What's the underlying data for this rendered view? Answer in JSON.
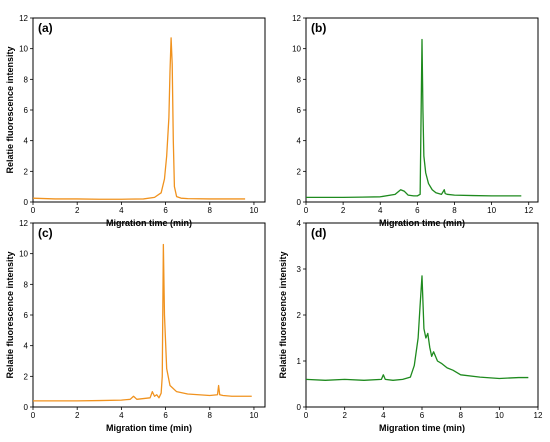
{
  "chart_data": [
    {
      "type": "line",
      "panel_label": "(a)",
      "xlabel": "Migration time (min)",
      "ylabel": "Relatie fluorescence intensity",
      "xlim": [
        0,
        10.5
      ],
      "ylim": [
        0,
        12
      ],
      "x_ticks": [
        0,
        2,
        4,
        6,
        8,
        10
      ],
      "y_ticks": [
        0,
        2,
        4,
        6,
        8,
        10,
        12
      ],
      "grid": false,
      "legend": "none",
      "color": "#f0921e",
      "x": [
        0,
        1,
        2,
        3,
        4,
        5,
        5.5,
        5.8,
        5.95,
        6.05,
        6.15,
        6.2,
        6.25,
        6.3,
        6.35,
        6.4,
        6.5,
        6.7,
        7,
        8,
        9,
        9.6
      ],
      "y": [
        0.25,
        0.2,
        0.2,
        0.18,
        0.18,
        0.2,
        0.3,
        0.6,
        1.5,
        3.0,
        5.5,
        8.5,
        10.7,
        9.0,
        4.0,
        1.0,
        0.35,
        0.25,
        0.22,
        0.2,
        0.2,
        0.2
      ]
    },
    {
      "type": "line",
      "panel_label": "(b)",
      "xlabel": "Migration time (min)",
      "ylabel": "",
      "xlim": [
        0,
        12.5
      ],
      "ylim": [
        0,
        12
      ],
      "x_ticks": [
        0,
        2,
        4,
        6,
        8,
        10,
        12
      ],
      "y_ticks": [
        0,
        2,
        4,
        6,
        8,
        10,
        12
      ],
      "grid": false,
      "legend": "none",
      "color": "#1e8a1e",
      "x": [
        0,
        1,
        2,
        3,
        4,
        4.8,
        5.1,
        5.3,
        5.5,
        5.8,
        6.0,
        6.15,
        6.25,
        6.3,
        6.35,
        6.45,
        6.6,
        6.8,
        7.0,
        7.3,
        7.45,
        7.5,
        7.6,
        8,
        9,
        10,
        11,
        11.6
      ],
      "y": [
        0.3,
        0.3,
        0.3,
        0.32,
        0.34,
        0.5,
        0.8,
        0.7,
        0.45,
        0.4,
        0.4,
        0.5,
        10.6,
        6.0,
        3.0,
        1.9,
        1.2,
        0.8,
        0.6,
        0.5,
        0.8,
        0.55,
        0.5,
        0.45,
        0.42,
        0.4,
        0.4,
        0.4
      ]
    },
    {
      "type": "line",
      "panel_label": "(c)",
      "xlabel": "Migration time (min)",
      "ylabel": "Relatie fluorescence intensity",
      "xlim": [
        0,
        10.5
      ],
      "ylim": [
        0,
        12
      ],
      "x_ticks": [
        0,
        2,
        4,
        6,
        8,
        10
      ],
      "y_ticks": [
        0,
        2,
        4,
        6,
        8,
        10,
        12
      ],
      "grid": false,
      "legend": "none",
      "color": "#f0921e",
      "x": [
        0,
        1,
        2,
        3,
        4,
        4.4,
        4.55,
        4.7,
        5.0,
        5.3,
        5.4,
        5.5,
        5.6,
        5.7,
        5.8,
        5.85,
        5.9,
        5.95,
        6.05,
        6.2,
        6.5,
        7.0,
        8.0,
        8.35,
        8.4,
        8.45,
        8.6,
        9.0,
        9.9
      ],
      "y": [
        0.4,
        0.4,
        0.4,
        0.42,
        0.45,
        0.5,
        0.7,
        0.5,
        0.55,
        0.6,
        1.0,
        0.7,
        0.8,
        0.6,
        0.9,
        2.0,
        10.6,
        6.0,
        2.5,
        1.4,
        1.0,
        0.85,
        0.75,
        0.8,
        1.4,
        0.8,
        0.75,
        0.7,
        0.7
      ]
    },
    {
      "type": "line",
      "panel_label": "(d)",
      "xlabel": "Migration time (min)",
      "ylabel": "Relatie fluorescence intensity",
      "xlim": [
        0,
        12
      ],
      "ylim": [
        0,
        4
      ],
      "x_ticks": [
        0,
        2,
        4,
        6,
        8,
        10,
        12
      ],
      "y_ticks": [
        0,
        1,
        2,
        3,
        4
      ],
      "grid": false,
      "legend": "none",
      "color": "#1e8a1e",
      "x": [
        0,
        1,
        2,
        3,
        3.9,
        4.0,
        4.1,
        4.5,
        5.0,
        5.4,
        5.6,
        5.8,
        5.9,
        6.0,
        6.1,
        6.2,
        6.3,
        6.4,
        6.5,
        6.6,
        6.8,
        7.0,
        7.3,
        7.6,
        8,
        9,
        10,
        11,
        11.5
      ],
      "y": [
        0.6,
        0.58,
        0.6,
        0.58,
        0.6,
        0.7,
        0.6,
        0.58,
        0.6,
        0.65,
        0.9,
        1.5,
        2.2,
        2.85,
        1.7,
        1.5,
        1.6,
        1.3,
        1.1,
        1.2,
        1.0,
        0.95,
        0.85,
        0.8,
        0.7,
        0.65,
        0.62,
        0.64,
        0.64
      ]
    }
  ]
}
